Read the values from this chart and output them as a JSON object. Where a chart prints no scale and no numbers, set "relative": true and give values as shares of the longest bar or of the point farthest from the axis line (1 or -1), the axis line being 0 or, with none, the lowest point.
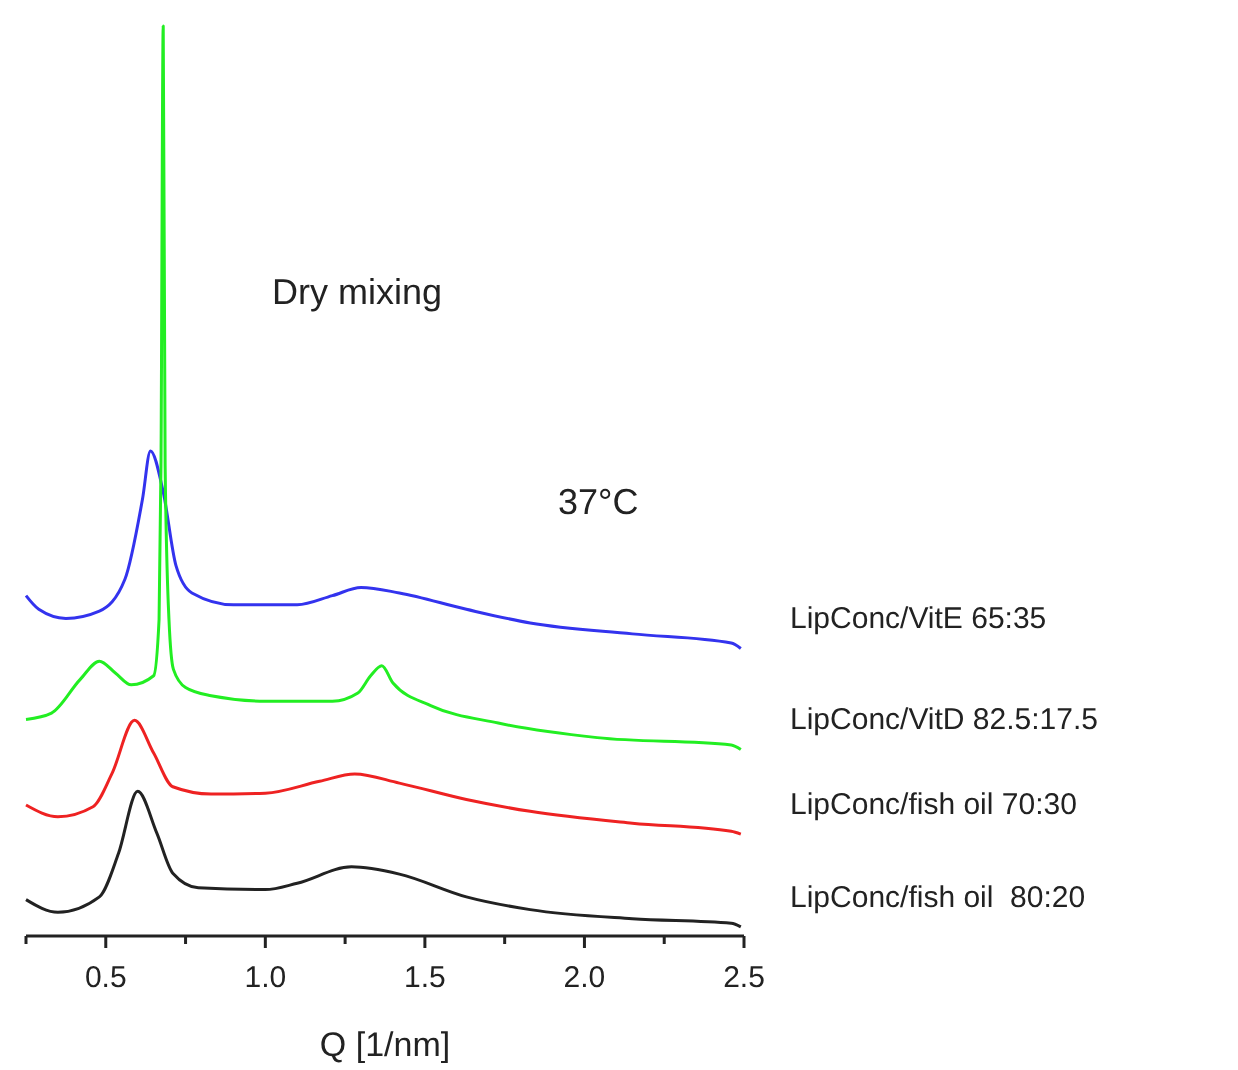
{
  "chart_data": {
    "type": "line",
    "relative": true,
    "xlabel": "Q [1/nm]",
    "legend": false,
    "xlim": [
      0.25,
      2.5
    ],
    "xticks": [
      {
        "value": 0.25,
        "label": null
      },
      0.5,
      {
        "value": 0.75,
        "label": null
      },
      {
        "value": 1.0,
        "label": "1.0"
      },
      {
        "value": 1.25,
        "label": null
      },
      1.5,
      {
        "value": 1.75,
        "label": null
      },
      {
        "value": 2.0,
        "label": "2.0"
      },
      {
        "value": 2.25,
        "label": null
      },
      2.5
    ],
    "annotations": [
      "Dry mixing",
      "37°C"
    ],
    "series": [
      {
        "name": "LipConc/VitE 65:35",
        "color": "#3333ee",
        "x": [
          0.25,
          0.29,
          0.375,
          0.48,
          0.56,
          0.615,
          0.64,
          0.68,
          0.72,
          0.77,
          0.9,
          1.1,
          1.21,
          1.3,
          1.42,
          1.63,
          1.83,
          2.15,
          2.46,
          2.49
        ],
        "values": [
          0.374,
          0.359,
          0.349,
          0.357,
          0.392,
          0.48,
          0.533,
          0.488,
          0.407,
          0.377,
          0.364,
          0.364,
          0.374,
          0.383,
          0.377,
          0.359,
          0.344,
          0.332,
          0.322,
          0.316
        ]
      },
      {
        "name": "LipConc/VitD 82.5:17.5",
        "color": "#22ee22",
        "x": [
          0.25,
          0.33,
          0.42,
          0.48,
          0.53,
          0.58,
          0.65,
          0.667,
          0.673,
          0.68,
          0.686,
          0.698,
          0.712,
          0.75,
          0.83,
          1.0,
          1.21,
          1.29,
          1.33,
          1.365,
          1.4,
          1.52,
          1.73,
          2.04,
          2.46,
          2.49
        ],
        "values": [
          0.238,
          0.245,
          0.282,
          0.302,
          0.289,
          0.276,
          0.286,
          0.348,
          0.517,
          1.0,
          0.517,
          0.348,
          0.293,
          0.273,
          0.264,
          0.258,
          0.258,
          0.267,
          0.286,
          0.297,
          0.278,
          0.253,
          0.234,
          0.218,
          0.21,
          0.205
        ]
      },
      {
        "name": "LipConc/fish oil 70:30",
        "color": "#ee2222",
        "x": [
          0.25,
          0.35,
          0.46,
          0.52,
          0.59,
          0.65,
          0.71,
          0.83,
          1.0,
          1.17,
          1.28,
          1.42,
          1.63,
          1.83,
          2.15,
          2.46,
          2.49
        ],
        "values": [
          0.144,
          0.131,
          0.142,
          0.179,
          0.237,
          0.201,
          0.164,
          0.156,
          0.157,
          0.17,
          0.178,
          0.168,
          0.15,
          0.137,
          0.124,
          0.115,
          0.112
        ]
      },
      {
        "name": "LipConc/fish oil  80:20",
        "color": "#222222",
        "x": [
          0.25,
          0.35,
          0.48,
          0.54,
          0.6,
          0.66,
          0.71,
          0.79,
          1.0,
          1.1,
          1.27,
          1.42,
          1.63,
          1.83,
          2.15,
          2.46,
          2.49
        ],
        "values": [
          0.04,
          0.026,
          0.043,
          0.091,
          0.159,
          0.113,
          0.069,
          0.053,
          0.051,
          0.058,
          0.076,
          0.068,
          0.043,
          0.029,
          0.019,
          0.014,
          0.01
        ]
      }
    ]
  }
}
